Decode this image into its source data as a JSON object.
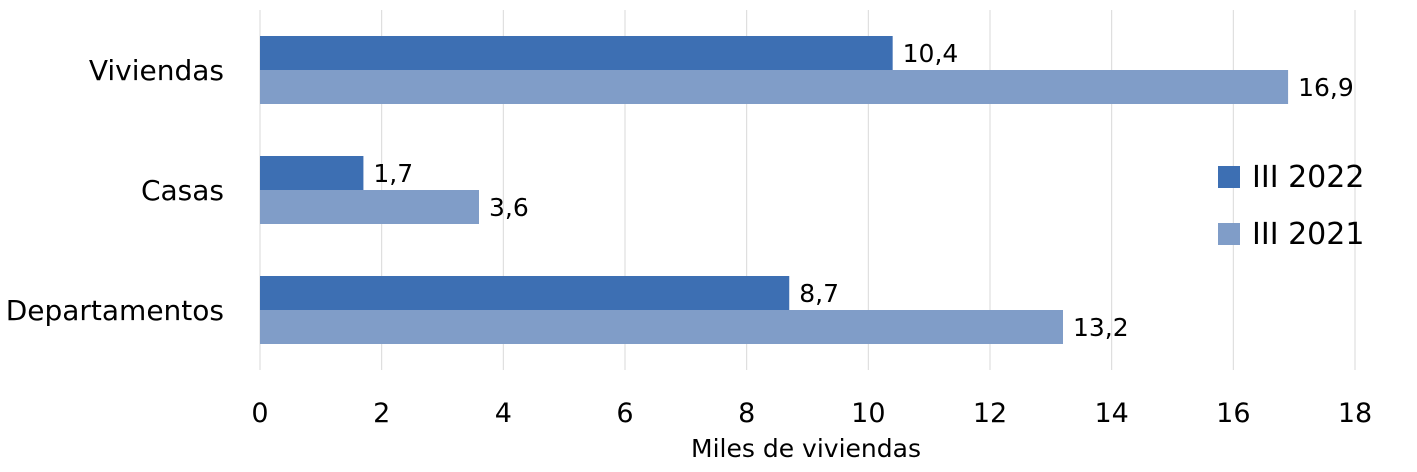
{
  "chart_data": {
    "type": "bar",
    "orientation": "horizontal",
    "categories": [
      "Viviendas",
      "Casas",
      "Departamentos"
    ],
    "series": [
      {
        "name": "III 2022",
        "values": [
          10.4,
          1.7,
          8.7
        ],
        "labels": [
          "10,4",
          "1,7",
          "8,7"
        ],
        "color": "#3d6fb3"
      },
      {
        "name": "III 2021",
        "values": [
          16.9,
          3.6,
          13.2
        ],
        "labels": [
          "16,9",
          "3,6",
          "13,2"
        ],
        "color": "#809dc8"
      }
    ],
    "xlabel": "Miles de viviendas",
    "xlim": [
      0,
      18
    ],
    "xticks": [
      "0",
      "2",
      "4",
      "6",
      "8",
      "10",
      "12",
      "14",
      "16",
      "18"
    ],
    "grid": "vertical",
    "legend_position": "right"
  }
}
